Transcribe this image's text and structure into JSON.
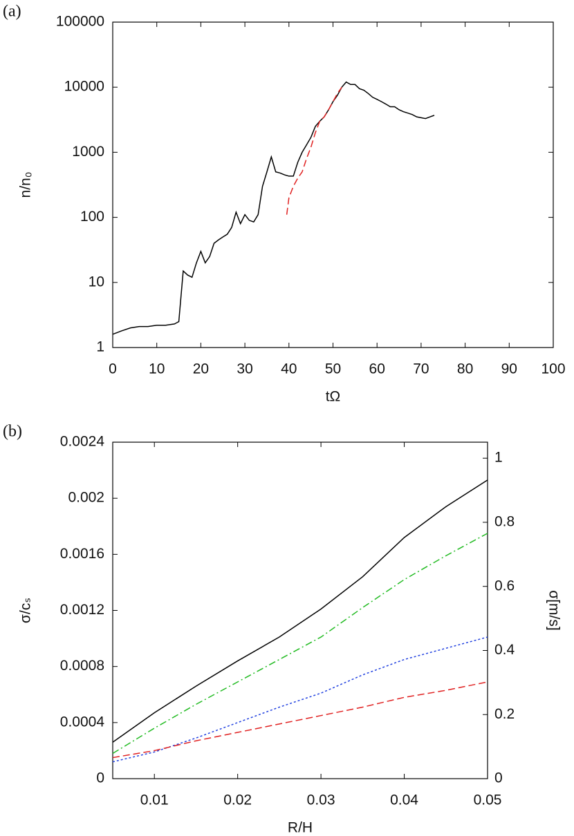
{
  "chart_data": [
    {
      "type": "line",
      "panel_label": "(a)",
      "xlabel": "tΩ",
      "ylabel": "n/n₀",
      "log": true,
      "xlim": [
        0,
        100
      ],
      "xticks": [
        0,
        10,
        20,
        30,
        40,
        50,
        60,
        70,
        80,
        90,
        100
      ],
      "ylim": [
        1,
        100000
      ],
      "yticks": [
        1,
        10,
        100,
        1000,
        10000,
        100000
      ],
      "series": [
        {
          "color": "#000000",
          "line_style": "solid",
          "x": [
            0,
            2,
            4,
            6,
            8,
            10,
            12,
            14,
            15,
            16,
            17,
            18,
            19,
            20,
            21,
            22,
            23,
            24,
            25,
            26,
            27,
            28,
            29,
            30,
            31,
            32,
            33,
            34,
            35,
            36,
            37,
            38,
            39,
            40,
            41,
            42,
            43,
            44,
            45,
            46,
            47,
            48,
            49,
            50,
            51,
            52,
            53,
            54,
            55,
            56,
            57,
            58,
            59,
            60,
            61,
            62,
            63,
            64,
            65,
            66,
            67,
            68,
            69,
            70,
            71,
            72,
            73
          ],
          "values": [
            1.6,
            1.8,
            2,
            2.1,
            2.1,
            2.2,
            2.2,
            2.3,
            2.5,
            15,
            13,
            12,
            20,
            30,
            20,
            25,
            40,
            45,
            50,
            55,
            70,
            120,
            80,
            110,
            90,
            85,
            110,
            300,
            500,
            850,
            500,
            480,
            450,
            430,
            430,
            700,
            1000,
            1300,
            1700,
            2500,
            3000,
            3500,
            4500,
            6000,
            7500,
            10000,
            12000,
            11000,
            11000,
            9500,
            9000,
            8000,
            7000,
            6500,
            6000,
            5500,
            5000,
            5000,
            4500,
            4200,
            4000,
            3800,
            3500,
            3400,
            3300,
            3500,
            3700
          ]
        },
        {
          "color": "#e02020",
          "line_style": "dashed",
          "x": [
            39.5,
            40,
            41,
            42,
            43,
            44,
            45,
            46,
            47,
            48,
            49,
            50,
            51,
            52
          ],
          "values": [
            110,
            200,
            300,
            400,
            500,
            800,
            1200,
            2000,
            3000,
            3500,
            4500,
            6000,
            8000,
            10000
          ]
        }
      ]
    },
    {
      "type": "line",
      "panel_label": "(b)",
      "xlabel": "R/H",
      "ylabel": "σ/cₛ",
      "y2label": "σ[m/s]",
      "log": false,
      "xlim": [
        0.005,
        0.05
      ],
      "xticks": [
        0.01,
        0.02,
        0.03,
        0.04,
        0.05
      ],
      "ylim": [
        0,
        0.0024
      ],
      "yticks": [
        0,
        0.0004,
        0.0008,
        0.0012,
        0.0016,
        0.002,
        0.0024
      ],
      "y2lim": [
        0,
        1.05
      ],
      "y2ticks": [
        0,
        0.2,
        0.4,
        0.6,
        0.8,
        1
      ],
      "x": [
        0.005,
        0.01,
        0.015,
        0.02,
        0.025,
        0.03,
        0.035,
        0.04,
        0.045,
        0.05
      ],
      "series": [
        {
          "color": "#000000",
          "line_style": "solid",
          "values": [
            0.00026,
            0.00047,
            0.00066,
            0.00084,
            0.00101,
            0.00121,
            0.00144,
            0.00172,
            0.00194,
            0.00213
          ]
        },
        {
          "color": "#22bb22",
          "line_style": "dash-dot",
          "values": [
            0.00018,
            0.00036,
            0.00053,
            0.00069,
            0.00085,
            0.00101,
            0.00122,
            0.00142,
            0.00159,
            0.00175
          ]
        },
        {
          "color": "#2040e0",
          "line_style": "dotted",
          "values": [
            0.00012,
            0.00019,
            0.00029,
            0.0004,
            0.00051,
            0.00061,
            0.00074,
            0.00085,
            0.00093,
            0.00101
          ]
        },
        {
          "color": "#e02020",
          "line_style": "dashed",
          "values": [
            0.00015,
            0.0002,
            0.00027,
            0.00033,
            0.00039,
            0.00045,
            0.00051,
            0.00058,
            0.00063,
            0.00069
          ]
        }
      ]
    }
  ]
}
